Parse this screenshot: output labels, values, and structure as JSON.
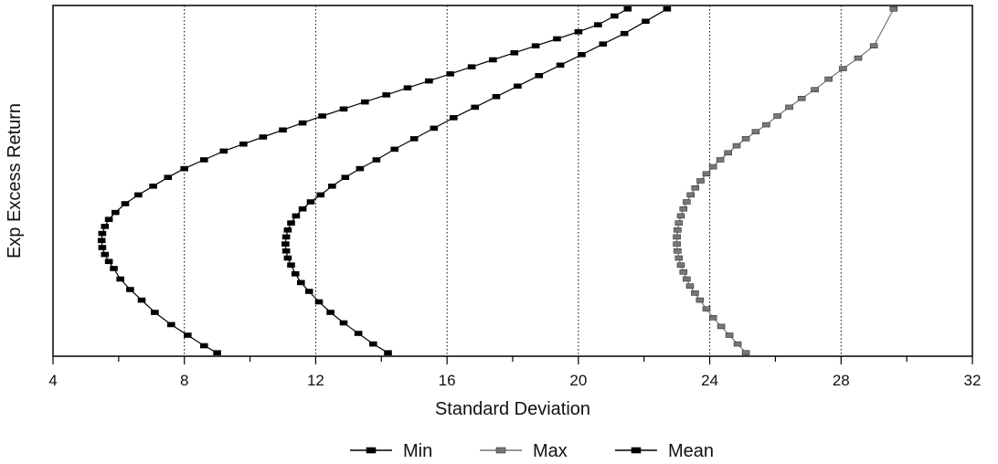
{
  "chart_data": {
    "type": "scatter",
    "title": "",
    "xlabel": "Standard Deviation",
    "ylabel": "Exp Excess Return",
    "xlim": [
      4,
      32
    ],
    "ylim": [
      0,
      1
    ],
    "x_ticks": [
      4,
      8,
      12,
      16,
      20,
      24,
      28,
      32
    ],
    "x_tick_labels": [
      "4",
      "8",
      "12",
      "16",
      "20",
      "24",
      "28",
      "32"
    ],
    "y_tick_labels": [],
    "grid": "vertical-dotted",
    "legend_position": "bottom-center",
    "series": [
      {
        "name": "Min",
        "color": "#000000",
        "marker": "square",
        "x": [
          9.0,
          8.6,
          8.1,
          7.6,
          7.1,
          6.7,
          6.35,
          6.05,
          5.85,
          5.7,
          5.58,
          5.5,
          5.48,
          5.5,
          5.58,
          5.7,
          5.9,
          6.2,
          6.6,
          7.05,
          7.5,
          8.0,
          8.6,
          9.2,
          9.8,
          10.4,
          11.0,
          11.6,
          12.2,
          12.85,
          13.5,
          14.15,
          14.8,
          15.45,
          16.1,
          16.75,
          17.4,
          18.05,
          18.7,
          19.35,
          20.0,
          20.6,
          21.1,
          21.5
        ],
        "y": [
          0.01,
          0.03,
          0.06,
          0.09,
          0.125,
          0.16,
          0.19,
          0.22,
          0.25,
          0.27,
          0.29,
          0.31,
          0.33,
          0.35,
          0.37,
          0.39,
          0.41,
          0.435,
          0.46,
          0.485,
          0.51,
          0.535,
          0.56,
          0.585,
          0.605,
          0.625,
          0.645,
          0.665,
          0.685,
          0.705,
          0.725,
          0.745,
          0.765,
          0.785,
          0.805,
          0.825,
          0.845,
          0.865,
          0.885,
          0.905,
          0.925,
          0.945,
          0.97,
          0.99
        ]
      },
      {
        "name": "Max",
        "color": "#777777",
        "marker": "square",
        "x": [
          25.1,
          24.85,
          24.6,
          24.35,
          24.1,
          23.9,
          23.7,
          23.55,
          23.4,
          23.3,
          23.2,
          23.12,
          23.06,
          23.02,
          23.0,
          23.0,
          23.02,
          23.06,
          23.12,
          23.2,
          23.3,
          23.42,
          23.56,
          23.72,
          23.9,
          24.1,
          24.32,
          24.56,
          24.82,
          25.1,
          25.4,
          25.72,
          26.06,
          26.42,
          26.8,
          27.2,
          27.62,
          28.06,
          28.52,
          29.0,
          29.6
        ],
        "y": [
          0.01,
          0.035,
          0.06,
          0.085,
          0.11,
          0.135,
          0.16,
          0.18,
          0.2,
          0.22,
          0.24,
          0.26,
          0.28,
          0.3,
          0.32,
          0.34,
          0.36,
          0.38,
          0.4,
          0.42,
          0.44,
          0.46,
          0.48,
          0.5,
          0.52,
          0.54,
          0.56,
          0.58,
          0.6,
          0.62,
          0.64,
          0.66,
          0.685,
          0.71,
          0.735,
          0.76,
          0.79,
          0.82,
          0.85,
          0.885,
          0.99
        ]
      },
      {
        "name": "Mean",
        "color": "#000000",
        "marker": "square",
        "x": [
          14.2,
          13.75,
          13.3,
          12.85,
          12.45,
          12.1,
          11.8,
          11.55,
          11.38,
          11.25,
          11.15,
          11.1,
          11.08,
          11.1,
          11.15,
          11.25,
          11.4,
          11.6,
          11.85,
          12.15,
          12.5,
          12.9,
          13.35,
          13.85,
          14.4,
          15.0,
          15.6,
          16.2,
          16.85,
          17.5,
          18.15,
          18.8,
          19.45,
          20.1,
          20.75,
          21.4,
          22.05,
          22.7
        ],
        "y": [
          0.01,
          0.035,
          0.065,
          0.095,
          0.125,
          0.155,
          0.185,
          0.21,
          0.235,
          0.26,
          0.28,
          0.3,
          0.32,
          0.34,
          0.36,
          0.38,
          0.4,
          0.42,
          0.44,
          0.46,
          0.485,
          0.51,
          0.535,
          0.56,
          0.59,
          0.62,
          0.65,
          0.68,
          0.71,
          0.74,
          0.77,
          0.8,
          0.83,
          0.86,
          0.89,
          0.92,
          0.955,
          0.99
        ]
      }
    ]
  }
}
